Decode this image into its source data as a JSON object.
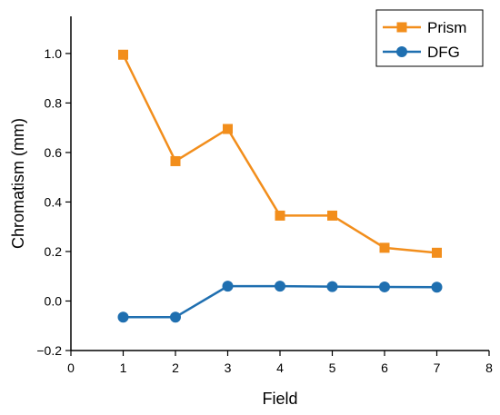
{
  "chart_data": {
    "type": "line",
    "xlabel": "Field",
    "ylabel": "Chromatism (mm)",
    "xlim": [
      0,
      8
    ],
    "ylim": [
      -0.2,
      1.15
    ],
    "x_ticks": [
      0,
      1,
      2,
      3,
      4,
      5,
      6,
      7,
      8
    ],
    "x_tick_labels": [
      "0",
      "1",
      "2",
      "3",
      "4",
      "5",
      "6",
      "7",
      "8"
    ],
    "y_ticks": [
      -0.2,
      0.0,
      0.2,
      0.4,
      0.6,
      0.8,
      1.0
    ],
    "y_tick_labels": [
      "−0.2",
      "0.0",
      "0.2",
      "0.4",
      "0.6",
      "0.8",
      "1.0"
    ],
    "grid": false,
    "legend_position": "top-right",
    "x": [
      1,
      2,
      3,
      4,
      5,
      6,
      7
    ],
    "series": [
      {
        "name": "Prism",
        "color": "#F28E1C",
        "marker": "square",
        "values": [
          0.995,
          0.565,
          0.695,
          0.345,
          0.345,
          0.215,
          0.195
        ]
      },
      {
        "name": "DFG",
        "color": "#1F6FB0",
        "marker": "circle",
        "values": [
          -0.065,
          -0.065,
          0.06,
          0.06,
          0.058,
          0.057,
          0.056
        ]
      }
    ]
  }
}
